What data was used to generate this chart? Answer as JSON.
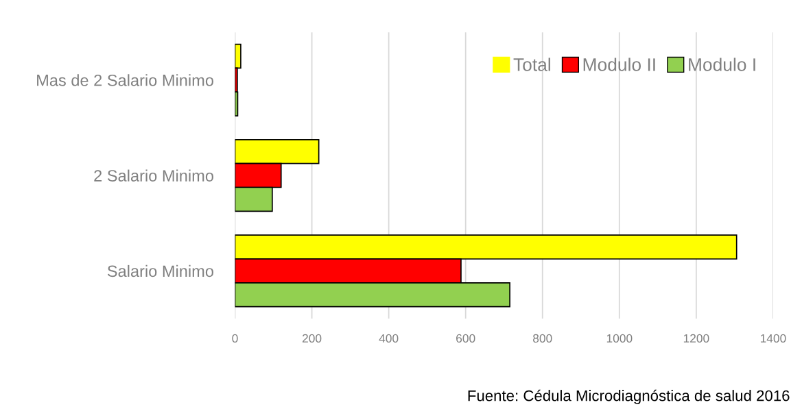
{
  "chart_data": {
    "type": "bar",
    "orientation": "horizontal",
    "categories": [
      "Mas de 2 Salario Minimo",
      "2 Salario Minimo",
      "Salario Minimo"
    ],
    "series": [
      {
        "name": "Total",
        "color": "#ffff00",
        "values": [
          15,
          218,
          1305
        ]
      },
      {
        "name": "Modulo II",
        "color": "#ff0000",
        "values": [
          6,
          120,
          588
        ]
      },
      {
        "name": "Modulo I",
        "color": "#92d050",
        "values": [
          7,
          97,
          715
        ]
      }
    ],
    "xlim": [
      0,
      1400
    ],
    "xticks": [
      0,
      200,
      400,
      600,
      800,
      1000,
      1200,
      1400
    ],
    "grid": "x",
    "legend": "top right",
    "annotations": [
      "Fuente: Cédula Microdiagnóstica de salud 2016"
    ]
  }
}
